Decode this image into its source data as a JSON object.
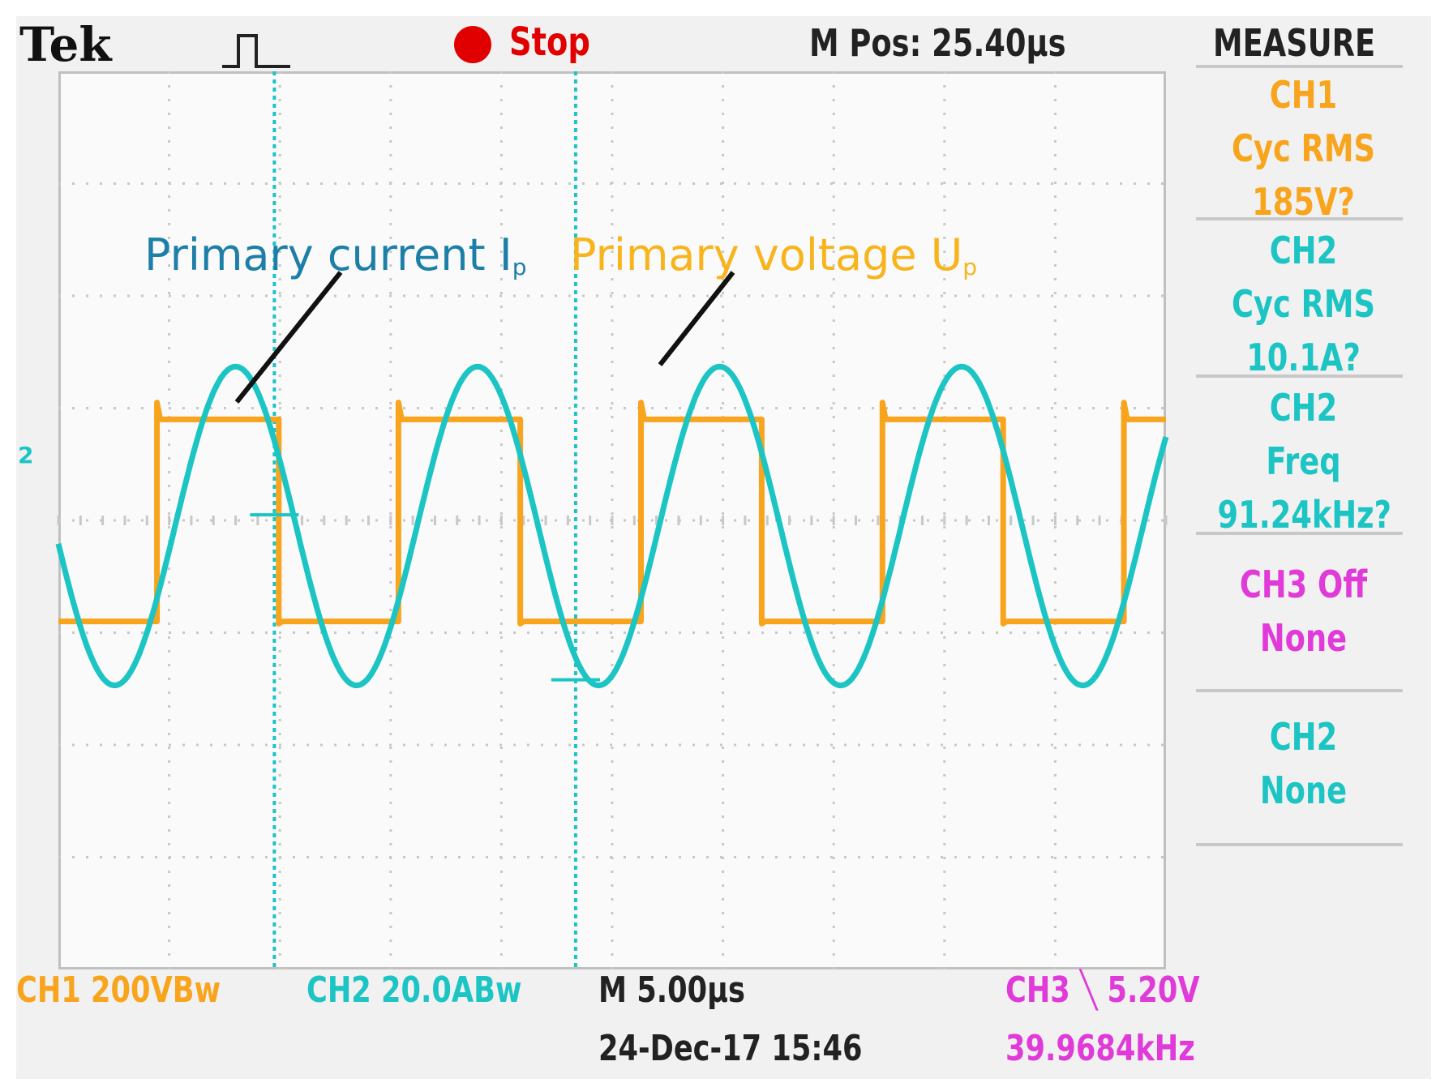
{
  "header": {
    "brand": "Tek",
    "run_state": "Stop",
    "m_pos": "M Pos: 25.40µs",
    "measure_title": "MEASURE"
  },
  "measure_panel": [
    {
      "lines": [
        "CH1",
        "Cyc RMS",
        "185V?"
      ],
      "color": "#f8a41c"
    },
    {
      "lines": [
        "CH2",
        "Cyc RMS",
        "10.1A?"
      ],
      "color": "#1cc4c4"
    },
    {
      "lines": [
        "CH2",
        "Freq",
        "91.24kHz?"
      ],
      "color": "#1cc4c4"
    },
    {
      "lines": [
        "CH3 Off",
        "None"
      ],
      "color": "#e03bd8"
    },
    {
      "lines": [
        "CH2",
        "None"
      ],
      "color": "#1cc4c4"
    }
  ],
  "footer": {
    "ch1_scale": "CH1  200VBw",
    "ch2_scale": "CH2  20.0ABw",
    "timebase": "M 5.00µs",
    "datetime": "24-Dec-17 15:46",
    "trigger": "CH3 ⿽ 5.20V",
    "trigger_freq": "39.9684kHz"
  },
  "chart_data": {
    "type": "line",
    "x_unit": "divisions",
    "x_range": [
      0,
      10
    ],
    "y_range": [
      -4,
      4
    ],
    "grid": true,
    "frequency_kHz": 91.24,
    "series": [
      {
        "name": "Primary voltage Up",
        "shape": "square",
        "color": "#f8a41c",
        "high_div": 0.9,
        "low_div": -0.9,
        "rising_edges_div": [
          0.89,
          3.07,
          5.26,
          7.44,
          9.62
        ],
        "falling_edges_div": [
          1.99,
          4.17,
          6.35,
          8.53
        ]
      },
      {
        "name": "Primary current Ip",
        "shape": "sine",
        "color": "#1cc4c4",
        "offset_div": -0.05,
        "amplitude_div": 1.42,
        "first_peak_div": 1.6,
        "period_div": 2.185
      }
    ],
    "annotations": [
      {
        "text": "Primary current I",
        "sub": "p",
        "color": "#1d7fa8"
      },
      {
        "text": "Primary voltage U",
        "sub": "p",
        "color": "#f8b41c"
      }
    ],
    "cursors_div": [
      1.95,
      4.67
    ],
    "ch2_marker": "2"
  }
}
